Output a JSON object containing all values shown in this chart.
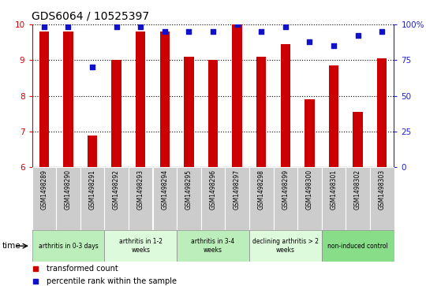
{
  "title": "GDS6064 / 10525397",
  "samples": [
    "GSM1498289",
    "GSM1498290",
    "GSM1498291",
    "GSM1498292",
    "GSM1498293",
    "GSM1498294",
    "GSM1498295",
    "GSM1498296",
    "GSM1498297",
    "GSM1498298",
    "GSM1498299",
    "GSM1498300",
    "GSM1498301",
    "GSM1498302",
    "GSM1498303"
  ],
  "bar_values": [
    9.8,
    9.8,
    6.9,
    9.0,
    9.8,
    9.8,
    9.1,
    9.0,
    10.0,
    9.1,
    9.45,
    7.9,
    8.85,
    7.55,
    9.05
  ],
  "dot_values": [
    98,
    98,
    70,
    98,
    98,
    95,
    95,
    95,
    100,
    95,
    98,
    88,
    85,
    92,
    95
  ],
  "bar_color": "#cc0000",
  "dot_color": "#1111cc",
  "ylim_left": [
    6,
    10
  ],
  "ylim_right": [
    0,
    100
  ],
  "yticks_left": [
    6,
    7,
    8,
    9,
    10
  ],
  "yticks_right": [
    0,
    25,
    50,
    75,
    100
  ],
  "yticklabels_right": [
    "0",
    "25",
    "50",
    "75",
    "100%"
  ],
  "groups": [
    {
      "label": "arthritis in 0-3 days",
      "start": 0,
      "end": 3,
      "color": "#bbeebb"
    },
    {
      "label": "arthritis in 1-2\nweeks",
      "start": 3,
      "end": 6,
      "color": "#ddfadd"
    },
    {
      "label": "arthritis in 3-4\nweeks",
      "start": 6,
      "end": 9,
      "color": "#bbeebb"
    },
    {
      "label": "declining arthritis > 2\nweeks",
      "start": 9,
      "end": 12,
      "color": "#ddfadd"
    },
    {
      "label": "non-induced control",
      "start": 12,
      "end": 15,
      "color": "#88dd88"
    }
  ],
  "time_label": "time",
  "legend1_label": "transformed count",
  "legend2_label": "percentile rank within the sample",
  "background_color": "#ffffff",
  "tick_label_color_left": "#cc0000",
  "tick_label_color_right": "#2222cc",
  "sample_box_color": "#cccccc",
  "bar_width": 0.4
}
